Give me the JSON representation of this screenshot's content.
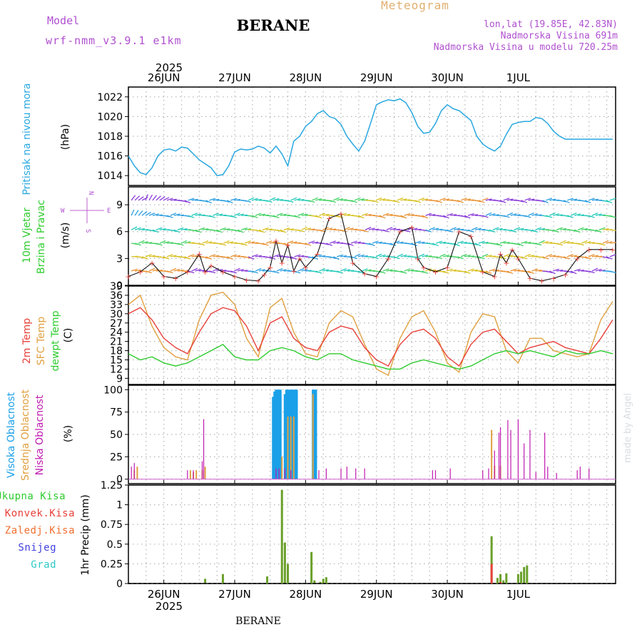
{
  "header": {
    "model_label": "Model",
    "model_name": "wrf-nmm_v3.9.1 e1km",
    "station": "BERANE",
    "product": "Meteogram",
    "coords": "lon,lat (19.85E, 42.83N)",
    "elevation": "Nadmorska Visina 691m",
    "model_elevation": "Nadmorska Visina u modelu 720.25m",
    "footer_station": "BERANE",
    "watermark": "made by Angel"
  },
  "time_axis": {
    "year_top": "2025",
    "year_bottom": "2025",
    "day_labels": [
      "26JUN",
      "27JUN",
      "28JUN",
      "29JUN",
      "30JUN",
      "1JUL"
    ]
  },
  "colors": {
    "pressure": "#29a8e0",
    "t2m": "#e8413a",
    "sfc": "#e0a040",
    "dewpt": "#2ecc2e",
    "high_cloud": "#1aa0e8",
    "mid_cloud": "#e0a040",
    "low_cloud": "#c01ab0",
    "total_precip": "#2ecc2e",
    "conv_precip": "#e8413a",
    "snow_text": "#4040e0",
    "hail_text": "#30c8c8",
    "frozen_text": "#f07030",
    "model_text": "#b050d0",
    "meteogram_text": "#e0b070"
  },
  "panels": {
    "pressure": {
      "label": "Pritisak na nivou mora",
      "unit": "(hPa)"
    },
    "wind": {
      "label1": "10m Vjetar",
      "label2": "Brzina i Pravac",
      "unit": "(m/s)",
      "compass_n": "N",
      "compass_s": "S",
      "compass_w": "W",
      "compass_e": "E"
    },
    "temp": {
      "label1": "2m Temp",
      "label2": "SFC Temp",
      "label3": "dewpt Temp",
      "unit": "(C)"
    },
    "cloud": {
      "label1": "Visoka Oblacnost",
      "label2": "Srednja Oblacnost",
      "label3": "Niska Oblacnost",
      "unit": "(%)"
    },
    "precip": {
      "legend": [
        "Ukupna Kisa",
        "Konvek.Kisa",
        "Zaledj.Kisa",
        "Snijeg",
        "Grad"
      ],
      "unit": "1hr Precip (mm)"
    }
  },
  "chart_data": [
    {
      "type": "line",
      "title": "Pritisak na nivou mora",
      "ylabel": "(hPa)",
      "x_unit": "hours from 26JUN 00 UTC",
      "ylim": [
        1013,
        1023
      ],
      "yticks": [
        1014,
        1016,
        1018,
        1020,
        1022
      ],
      "series": [
        {
          "name": "Pritisak na nivou mora",
          "x": [
            -12,
            -10,
            -8,
            -6,
            -4,
            -2,
            0,
            2,
            4,
            6,
            8,
            10,
            12,
            14,
            16,
            18,
            20,
            22,
            24,
            26,
            28,
            30,
            32,
            34,
            36,
            38,
            40,
            42,
            44,
            46,
            48,
            50,
            52,
            54,
            56,
            58,
            60,
            62,
            64,
            66,
            68,
            70,
            72,
            74,
            76,
            78,
            80,
            82,
            84,
            86,
            88,
            90,
            92,
            94,
            96,
            98,
            100,
            102,
            104,
            106,
            108,
            110,
            112,
            114,
            116,
            118,
            120,
            122,
            124,
            126,
            128,
            130,
            132,
            134,
            136,
            138,
            140,
            142,
            144,
            146,
            148,
            150,
            152
          ],
          "values": [
            1016.0,
            1015.0,
            1014.3,
            1014.1,
            1014.8,
            1016.0,
            1016.6,
            1016.7,
            1016.5,
            1016.9,
            1016.8,
            1016.2,
            1015.6,
            1015.2,
            1014.8,
            1014.0,
            1014.1,
            1015.0,
            1016.4,
            1016.7,
            1016.6,
            1016.7,
            1017.0,
            1016.8,
            1016.3,
            1017.0,
            1016.2,
            1015.0,
            1017.5,
            1018.0,
            1019.0,
            1019.5,
            1020.3,
            1020.6,
            1020.0,
            1019.8,
            1019.2,
            1018.0,
            1017.2,
            1016.5,
            1017.5,
            1019.3,
            1021.2,
            1021.5,
            1021.7,
            1021.6,
            1021.8,
            1021.4,
            1020.4,
            1019.0,
            1018.3,
            1018.4,
            1019.3,
            1020.6,
            1021.2,
            1020.8,
            1020.6,
            1020.1,
            1019.6,
            1018.0,
            1017.2,
            1016.8,
            1016.5,
            1017.0,
            1018.2,
            1019.2,
            1019.4,
            1019.5,
            1019.5,
            1019.9,
            1019.8,
            1019.3,
            1018.5,
            1018.0,
            1017.7,
            1017.7,
            1017.7,
            1017.7,
            1017.7,
            1017.7,
            1017.7,
            1017.7,
            1017.7
          ]
        }
      ]
    },
    {
      "type": "line",
      "title": "10m Vjetar Brzina i Pravac",
      "ylabel": "(m/s)",
      "x_unit": "hours from 26JUN 00 UTC",
      "ylim": [
        0,
        11
      ],
      "yticks": [
        0,
        3,
        6,
        9
      ],
      "series": [
        {
          "name": "10m Vjetar",
          "x": [
            -12,
            -8,
            -4,
            0,
            4,
            8,
            12,
            14,
            16,
            20,
            24,
            28,
            32,
            34,
            36,
            38,
            40,
            42,
            44,
            46,
            48,
            52,
            56,
            60,
            64,
            68,
            72,
            76,
            80,
            84,
            86,
            88,
            92,
            96,
            100,
            104,
            108,
            112,
            114,
            116,
            118,
            120,
            124,
            128,
            132,
            136,
            140,
            144,
            148,
            152
          ],
          "values": [
            1.0,
            1.5,
            2.5,
            1.0,
            0.8,
            1.5,
            3.5,
            1.5,
            2.2,
            1.5,
            1.0,
            0.6,
            0.5,
            1.2,
            2.0,
            5.0,
            2.5,
            4.5,
            1.6,
            3.0,
            2.0,
            3.5,
            7.5,
            8.0,
            2.5,
            1.3,
            1.0,
            3.0,
            6.0,
            6.5,
            3.0,
            2.0,
            1.5,
            2.0,
            6.0,
            5.5,
            1.5,
            1.0,
            3.5,
            2.5,
            4.0,
            3.0,
            0.8,
            0.5,
            0.8,
            1.2,
            3.0,
            4.0,
            4.0,
            4.0
          ]
        }
      ]
    },
    {
      "type": "line",
      "title": "2m Temp / SFC Temp / dewpt Temp",
      "ylabel": "(C)",
      "x_unit": "hours from 26JUN 00 UTC",
      "ylim": [
        7,
        39
      ],
      "yticks": [
        9,
        12,
        15,
        18,
        21,
        24,
        27,
        30,
        33,
        36,
        39
      ],
      "series": [
        {
          "name": "2m Temp",
          "x": [
            -12,
            -8,
            -4,
            0,
            4,
            8,
            12,
            16,
            20,
            24,
            28,
            32,
            36,
            40,
            44,
            48,
            52,
            56,
            60,
            64,
            68,
            72,
            76,
            80,
            84,
            88,
            92,
            96,
            100,
            104,
            108,
            112,
            116,
            120,
            124,
            128,
            132,
            136,
            140,
            144,
            148,
            152
          ],
          "values": [
            30,
            32,
            28,
            22,
            19,
            17,
            24,
            30,
            32,
            31,
            26,
            18,
            27,
            29,
            22,
            19,
            18,
            24,
            26,
            25,
            19,
            15,
            13,
            20,
            24,
            25,
            22,
            16,
            13,
            20,
            24,
            25,
            21,
            17,
            19,
            20,
            21,
            19,
            18,
            17,
            22,
            28
          ]
        },
        {
          "name": "SFC Temp",
          "x": [
            -12,
            -8,
            -4,
            0,
            4,
            8,
            12,
            16,
            20,
            24,
            28,
            32,
            36,
            40,
            44,
            48,
            52,
            56,
            60,
            64,
            68,
            72,
            76,
            80,
            84,
            88,
            92,
            96,
            100,
            104,
            108,
            112,
            116,
            120,
            124,
            128,
            132,
            136,
            140,
            144,
            148,
            152
          ],
          "values": [
            33,
            36,
            26,
            19,
            16,
            15,
            28,
            36,
            37,
            33,
            22,
            16,
            32,
            35,
            24,
            17,
            16,
            27,
            31,
            29,
            20,
            12,
            10,
            22,
            29,
            31,
            24,
            14,
            11,
            24,
            30,
            29,
            18,
            14,
            22,
            22,
            18,
            17,
            16,
            17,
            28,
            34
          ]
        },
        {
          "name": "dewpt Temp",
          "x": [
            -12,
            -8,
            -4,
            0,
            4,
            8,
            12,
            16,
            20,
            24,
            28,
            32,
            36,
            40,
            44,
            48,
            52,
            56,
            60,
            64,
            68,
            72,
            76,
            80,
            84,
            88,
            92,
            96,
            100,
            104,
            108,
            112,
            116,
            120,
            124,
            128,
            132,
            136,
            140,
            144,
            148,
            152
          ],
          "values": [
            17,
            15,
            16,
            14,
            13,
            14,
            16,
            18,
            20,
            16,
            15,
            15,
            18,
            19,
            18,
            16,
            15,
            17,
            17,
            15,
            14,
            13,
            12,
            12,
            14,
            15,
            14,
            13,
            12,
            13,
            15,
            17,
            18,
            17,
            18,
            17,
            16,
            18,
            17,
            17,
            18,
            17
          ]
        }
      ]
    },
    {
      "type": "bar",
      "title": "Visoka / Srednja / Niska Oblacnost",
      "ylabel": "(%)",
      "x_unit": "hours from 26JUN 00 UTC",
      "ylim": [
        0,
        100
      ],
      "yticks": [
        0,
        25,
        50,
        75,
        100
      ],
      "series": [
        {
          "name": "Visoka Oblacnost",
          "x": [
            37,
            37.5,
            38,
            38.5,
            39,
            39.5,
            41,
            41.5,
            42,
            42.5,
            43,
            43.5,
            44,
            44.5,
            45,
            50.5,
            51,
            51.5
          ],
          "values": [
            92,
            98,
            100,
            100,
            100,
            100,
            95,
            100,
            100,
            100,
            100,
            100,
            100,
            100,
            100,
            100,
            100,
            100
          ]
        },
        {
          "name": "Srednja Oblacnost",
          "x": [
            -10,
            -9,
            9,
            10,
            11,
            13,
            14,
            40,
            42,
            43,
            44,
            50.5,
            111,
            112,
            114
          ],
          "values": [
            10,
            14,
            10,
            8,
            10,
            10,
            14,
            25,
            70,
            70,
            70,
            95,
            55,
            15,
            15
          ]
        },
        {
          "name": "Niska Oblacnost",
          "x": [
            -11,
            -10,
            8,
            10,
            13,
            13.5,
            38,
            39,
            41,
            43,
            52.5,
            55,
            60,
            62,
            65,
            68,
            91,
            92,
            97,
            108,
            110,
            112,
            113.5,
            114,
            116.5,
            117.5,
            120,
            122,
            124,
            126,
            129,
            130,
            133,
            140,
            141,
            144
          ],
          "values": [
            14,
            18,
            10,
            10,
            20,
            67,
            12,
            12,
            12,
            10,
            10,
            12,
            12,
            14,
            12,
            12,
            10,
            10,
            12,
            10,
            12,
            32,
            52,
            58,
            66,
            55,
            67,
            40,
            55,
            8,
            52,
            14,
            7,
            10,
            14,
            12
          ]
        }
      ]
    },
    {
      "type": "bar",
      "title": "1hr Precip",
      "ylabel": "1hr Precip (mm)",
      "x_unit": "hours from 26JUN 00 UTC",
      "ylim": [
        0,
        1.25
      ],
      "yticks": [
        0,
        0.25,
        0.5,
        0.75,
        1,
        1.25
      ],
      "series": [
        {
          "name": "Ukupna Kisa",
          "x": [
            14,
            20,
            35,
            40,
            41,
            42,
            50,
            51,
            53,
            54,
            55,
            111,
            113,
            114,
            115,
            116,
            120,
            121,
            122,
            123
          ],
          "values": [
            0.06,
            0.12,
            0.09,
            1.19,
            0.52,
            0.25,
            0.4,
            0.04,
            0.02,
            0.06,
            0.08,
            0.6,
            0.07,
            0.12,
            0.04,
            0.13,
            0.12,
            0.15,
            0.21,
            0.23
          ]
        },
        {
          "name": "Konvek.Kisa",
          "x": [
            111,
            114
          ],
          "values": [
            0.25,
            0.02
          ]
        }
      ]
    }
  ]
}
